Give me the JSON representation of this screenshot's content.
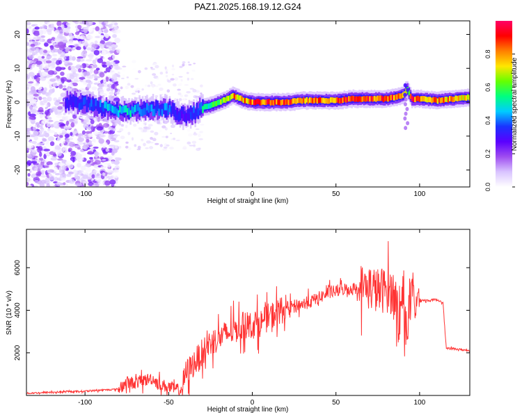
{
  "figure": {
    "title": "PAZ1.2025.168.19.12.G24"
  },
  "chart_data": [
    {
      "type": "heatmap",
      "title": "PAZ1.2025.168.19.12.G24",
      "xlabel": "Height of straight line (km)",
      "ylabel": "Frequency (Hz)",
      "xlim": [
        -135,
        130
      ],
      "ylim": [
        -25,
        24
      ],
      "xticks": [
        -100,
        -50,
        0,
        50,
        100
      ],
      "yticks": [
        -20,
        -10,
        0,
        10,
        20
      ],
      "grid": false,
      "colorbar": {
        "label": "Normalized spectral amplitude",
        "range": [
          0.0,
          1.0
        ],
        "ticks": [
          0.0,
          0.2,
          0.4,
          0.6,
          0.8
        ],
        "colors": [
          "#ffffff",
          "#d9c4ff",
          "#9f4df0",
          "#5a00ff",
          "#1a33ff",
          "#00ccff",
          "#00ff80",
          "#66ff00",
          "#ffe600",
          "#ff8000",
          "#ff0000",
          "#ff0066"
        ]
      },
      "ridge": {
        "x": [
          -110,
          -100,
          -90,
          -80,
          -70,
          -60,
          -50,
          -45,
          -40,
          -35,
          -30,
          -25,
          -20,
          -15,
          -12,
          -10,
          -5,
          0,
          10,
          20,
          30,
          40,
          50,
          60,
          70,
          80,
          85,
          90,
          92,
          95,
          100,
          110,
          120,
          130
        ],
        "frequency": [
          0,
          -0.5,
          -1.5,
          -2.5,
          -2.5,
          -2.0,
          -2.0,
          -3.5,
          -4.0,
          -3.0,
          -1.5,
          -1.0,
          0.0,
          1.0,
          2.0,
          1.5,
          0.5,
          0.0,
          0.0,
          0.0,
          0.5,
          0.5,
          0.5,
          1.0,
          1.0,
          1.0,
          1.5,
          2.0,
          4.0,
          1.0,
          1.0,
          0.5,
          1.0,
          1.5
        ],
        "amplitude": [
          0.3,
          0.35,
          0.4,
          0.5,
          0.45,
          0.4,
          0.4,
          0.3,
          0.3,
          0.35,
          0.5,
          0.55,
          0.6,
          0.7,
          0.8,
          0.75,
          0.8,
          0.85,
          0.85,
          0.85,
          0.8,
          0.8,
          0.85,
          0.85,
          0.85,
          0.85,
          0.85,
          0.8,
          0.55,
          0.9,
          0.8,
          0.8,
          0.75,
          0.7
        ]
      }
    },
    {
      "type": "line",
      "title": "",
      "xlabel": "Height of straight line (km)",
      "ylabel": "SNR (10 * v/v)",
      "xlim": [
        -135,
        130
      ],
      "ylim": [
        0,
        7800
      ],
      "xticks": [
        -100,
        -50,
        0,
        50,
        100
      ],
      "yticks": [
        2000,
        4000,
        6000
      ],
      "grid": false,
      "series": [
        {
          "color": "#ff3333",
          "x": [
            -135,
            -120,
            -100,
            -90,
            -80,
            -75,
            -70,
            -65,
            -60,
            -55,
            -50,
            -45,
            -42,
            -40,
            -35,
            -30,
            -25,
            -20,
            -15,
            -10,
            -5,
            0,
            5,
            10,
            15,
            20,
            25,
            30,
            35,
            40,
            45,
            50,
            55,
            60,
            65,
            70,
            75,
            80,
            85,
            88,
            90,
            92,
            95,
            98,
            100,
            105,
            110,
            114,
            115,
            116,
            120,
            125,
            130
          ],
          "y": [
            100,
            150,
            200,
            250,
            300,
            600,
            600,
            700,
            800,
            500,
            400,
            250,
            300,
            1000,
            1500,
            2000,
            2500,
            2700,
            2900,
            3100,
            3300,
            3300,
            3400,
            3700,
            3900,
            4100,
            4200,
            4300,
            4400,
            4600,
            4800,
            4900,
            5000,
            5000,
            5100,
            5100,
            4900,
            5000,
            4800,
            3500,
            5000,
            3000,
            4600,
            4400,
            4500,
            4450,
            4500,
            4400,
            3200,
            2200,
            2200,
            2150,
            2100
          ]
        }
      ]
    }
  ]
}
